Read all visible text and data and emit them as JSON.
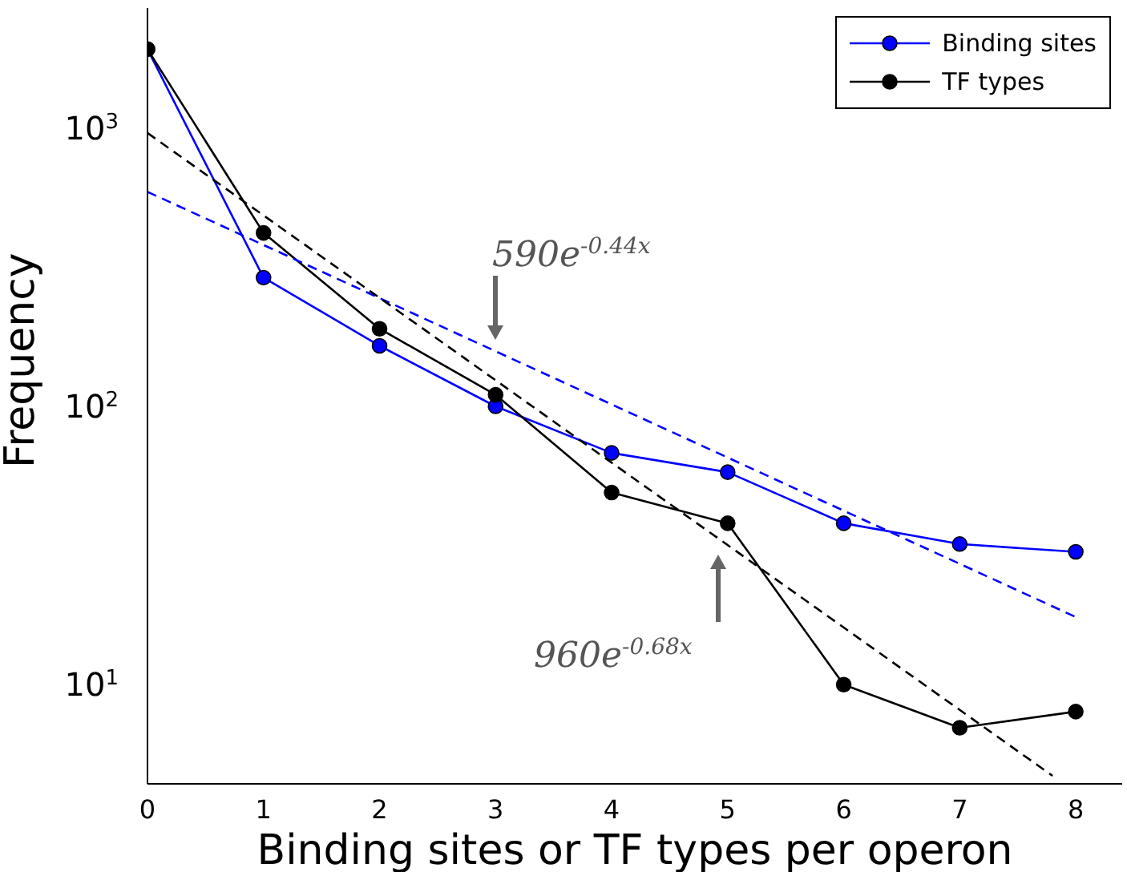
{
  "chart_data": {
    "type": "line",
    "xlabel": "Binding sites or TF types per operon",
    "ylabel": "Frequency",
    "log": "y",
    "x": [
      0,
      1,
      2,
      3,
      4,
      5,
      6,
      7,
      8
    ],
    "series": [
      {
        "name": "Binding sites",
        "color": "#0000ff",
        "values": [
          1920,
          290,
          165,
          100,
          68,
          58,
          38,
          32,
          30
        ]
      },
      {
        "name": "TF types",
        "color": "#000000",
        "values": [
          1920,
          420,
          190,
          110,
          49,
          38,
          10,
          7,
          8
        ]
      },
      {
        "type": "line",
        "color": "#0000ff",
        "x": [
          0,
          8
        ],
        "values": [
          590,
          17.5
        ],
        "line_style": "dashed",
        "marker": "none"
      },
      {
        "type": "line",
        "color": "#000000",
        "x": [
          0,
          7.8
        ],
        "values": [
          960,
          4.7
        ],
        "line_style": "dashed",
        "marker": "none"
      }
    ],
    "xlim": [
      0,
      8.4
    ],
    "xticks": [
      0,
      1,
      2,
      3,
      4,
      5,
      6,
      7,
      8
    ],
    "ylim": [
      4.4,
      2700
    ],
    "yticks": [
      {
        "value": 10,
        "label": "10$^{1}$"
      },
      {
        "value": 100,
        "label": "10$^{2}$"
      },
      {
        "value": 1000,
        "label": "10$^{3}$"
      }
    ],
    "marker": "circle",
    "line_style": "solid",
    "grid": false,
    "legend": "top right",
    "annotations": [
      "590e$^{-0.44x}$",
      "960e$^{-0.68x}$"
    ]
  }
}
